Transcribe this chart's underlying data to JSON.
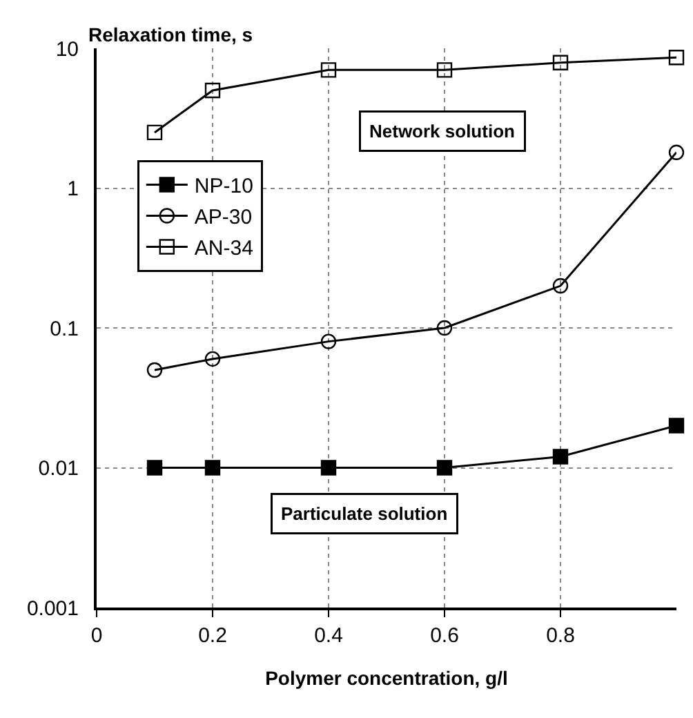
{
  "chart_data": {
    "type": "line",
    "ylabel": "Relaxation time, s",
    "xlabel": "Polymer concentration, g/l",
    "x": [
      0.1,
      0.2,
      0.4,
      0.6,
      0.8,
      1.0
    ],
    "series": [
      {
        "name": "NP-10",
        "color": "#000000",
        "marker": "square",
        "values": [
          0.01,
          0.01,
          0.01,
          0.01,
          0.012,
          0.02
        ]
      },
      {
        "name": "AP-30",
        "color": "#000000",
        "marker": "circle-open",
        "values": [
          0.05,
          0.06,
          0.08,
          0.1,
          0.2,
          1.8
        ]
      },
      {
        "name": "AN-34",
        "color": "#000000",
        "marker": "square-open",
        "values": [
          2.5,
          5,
          7,
          7,
          7.9,
          8.6
        ]
      }
    ],
    "log": "y",
    "xlim": [
      0,
      1
    ],
    "xticks": [
      0,
      0.2,
      0.4,
      0.6,
      0.8
    ],
    "ylim": [
      0.001,
      10
    ],
    "yticks": [
      0.001,
      0.01,
      0.1,
      1,
      10
    ],
    "grid": true,
    "legend": "top left",
    "line_style": "solid",
    "annotations": [
      "Network solution",
      "Particulate solution"
    ]
  }
}
